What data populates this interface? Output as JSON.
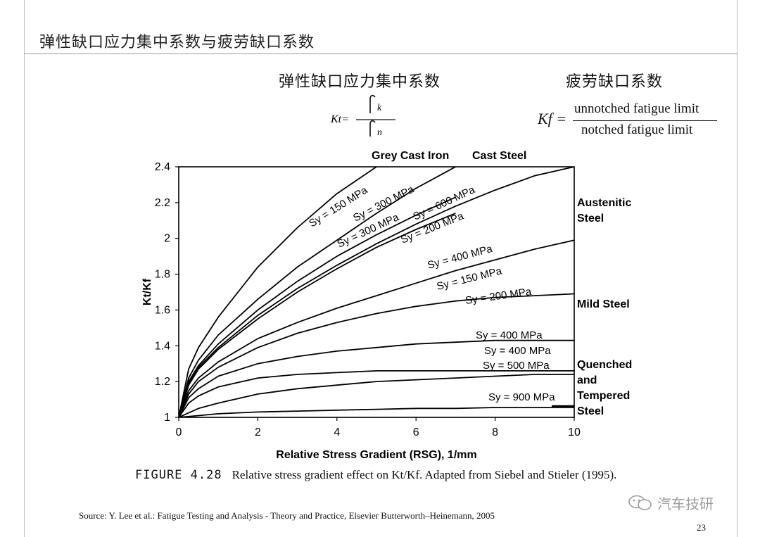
{
  "slide": {
    "title": "弹性缺口应力集中系数与疲劳缺口系数",
    "page_number": "23"
  },
  "formulas": {
    "kt_heading": "弹性缺口应力集中系数",
    "kf_heading": "疲劳缺口系数",
    "kt_lhs": "Kt=",
    "kt_num": "k",
    "kt_den": "n",
    "kf_lhs": "Kf =",
    "kf_numerator": "unnotched fatigue limit",
    "kf_denominator": "notched fatigue limit"
  },
  "caption": {
    "label": "FIGURE 4.28",
    "text": "Relative stress gradient effect on Kt/Kf. Adapted from Siebel and Stieler (1995)."
  },
  "source": "Source: Y. Lee et al.: Fatigue Testing and Analysis - Theory and Practice, Elsevier Butterworth–Heinemann, 2005",
  "watermark": "汽车技研",
  "chart_data": {
    "type": "line",
    "xlabel": "Relative Stress Gradient (RSG), 1/mm",
    "ylabel": "Kt/Kf",
    "xlim": [
      0,
      10
    ],
    "ylim": [
      1,
      2.4
    ],
    "xticks": [
      "0",
      "2",
      "4",
      "6",
      "8",
      "10"
    ],
    "yticks": [
      "1",
      "1.2",
      "1.4",
      "1.6",
      "1.8",
      "2",
      "2.2",
      "2.4"
    ],
    "grid": false,
    "group_labels": [
      {
        "text": "Grey Cast Iron"
      },
      {
        "text": "Cast Steel"
      },
      {
        "text": "Austenitic Steel"
      },
      {
        "text": "Mild Steel"
      },
      {
        "text": "Quenched and Tempered Steel"
      }
    ],
    "series": [
      {
        "name": "Sy = 150 MPa",
        "x": [
          0,
          0.25,
          0.5,
          1,
          1.5,
          2,
          3,
          4,
          5
        ],
        "y": [
          1,
          1.27,
          1.39,
          1.56,
          1.7,
          1.84,
          2.06,
          2.25,
          2.4
        ]
      },
      {
        "name": "Sy = 300 MPa",
        "x": [
          0,
          0.25,
          0.5,
          1,
          2,
          3,
          4,
          5,
          6,
          7
        ],
        "y": [
          1,
          1.22,
          1.32,
          1.46,
          1.66,
          1.84,
          1.99,
          2.14,
          2.28,
          2.4
        ]
      },
      {
        "name": "Sy = 300 MPa",
        "x": [
          0,
          0.25,
          0.5,
          1,
          2,
          3,
          4,
          5,
          6,
          7
        ],
        "y": [
          1,
          1.2,
          1.29,
          1.41,
          1.6,
          1.76,
          1.9,
          2.02,
          2.13,
          2.23
        ]
      },
      {
        "name": "Sy = 600 MPa",
        "x": [
          0,
          0.25,
          0.5,
          1,
          2,
          3,
          4,
          5,
          6,
          7,
          8,
          9,
          10
        ],
        "y": [
          1,
          1.19,
          1.28,
          1.39,
          1.57,
          1.72,
          1.85,
          1.97,
          2.08,
          2.18,
          2.27,
          2.35,
          2.4
        ]
      },
      {
        "name": "Sy = 200 MPa",
        "x": [
          0,
          0.25,
          0.5,
          1,
          2,
          3,
          4,
          5,
          6,
          7
        ],
        "y": [
          1,
          1.18,
          1.27,
          1.38,
          1.55,
          1.7,
          1.83,
          1.95,
          2.05,
          2.14
        ]
      },
      {
        "name": "Sy = 400 MPa",
        "x": [
          0,
          0.25,
          0.5,
          1,
          2,
          3,
          4,
          5,
          6,
          7,
          8,
          9,
          10
        ],
        "y": [
          1,
          1.15,
          1.22,
          1.31,
          1.44,
          1.53,
          1.61,
          1.68,
          1.75,
          1.82,
          1.88,
          1.94,
          1.99
        ]
      },
      {
        "name": "Sy = 150 MPa",
        "x": [
          0,
          0.25,
          0.5,
          1,
          2,
          3,
          4,
          5,
          6,
          7,
          8,
          9,
          10
        ],
        "y": [
          1,
          1.13,
          1.2,
          1.28,
          1.39,
          1.47,
          1.53,
          1.58,
          1.62,
          1.65,
          1.67,
          1.68,
          1.69
        ]
      },
      {
        "name": "Sy = 200 MPa",
        "x": [
          0,
          0.25,
          0.5,
          1,
          2,
          3,
          4,
          5,
          6,
          7,
          8,
          9,
          10
        ],
        "y": [
          1,
          1.11,
          1.16,
          1.23,
          1.3,
          1.34,
          1.37,
          1.39,
          1.41,
          1.42,
          1.43,
          1.43,
          1.43
        ]
      },
      {
        "name": "Sy = 400 MPa",
        "x": [
          0,
          0.25,
          0.5,
          1,
          2,
          3,
          4,
          5,
          6,
          7,
          8,
          9,
          10
        ],
        "y": [
          1,
          1.08,
          1.12,
          1.17,
          1.22,
          1.24,
          1.25,
          1.26,
          1.26,
          1.26,
          1.26,
          1.26,
          1.26
        ]
      },
      {
        "name": "Sy = 500 MPa",
        "x": [
          0,
          0.5,
          1,
          2,
          3,
          4,
          5,
          6,
          7,
          8,
          9,
          10
        ],
        "y": [
          1,
          1.05,
          1.08,
          1.13,
          1.16,
          1.18,
          1.2,
          1.21,
          1.22,
          1.23,
          1.24,
          1.24
        ]
      },
      {
        "name": "Sy = 900 MPa",
        "x": [
          0,
          0.5,
          1,
          2,
          3,
          4,
          5,
          6,
          7,
          8,
          9,
          10
        ],
        "y": [
          1,
          1.01,
          1.02,
          1.03,
          1.035,
          1.04,
          1.045,
          1.05,
          1.05,
          1.055,
          1.055,
          1.055
        ]
      }
    ]
  }
}
